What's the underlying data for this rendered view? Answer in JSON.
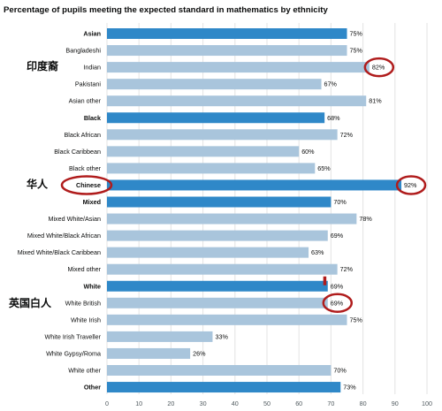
{
  "chart_data": {
    "type": "bar",
    "orientation": "horizontal",
    "title": "Percentage of pupils meeting the expected standard in mathematics by ethnicity",
    "xlim": [
      0,
      100
    ],
    "xticks": [
      0,
      10,
      20,
      30,
      40,
      50,
      60,
      70,
      80,
      90,
      100
    ],
    "grid": true,
    "categories": [
      "Asian",
      "Bangladeshi",
      "Indian",
      "Pakistani",
      "Asian other",
      "Black",
      "Black African",
      "Black Caribbean",
      "Black other",
      "Chinese",
      "Mixed",
      "Mixed White/Asian",
      "Mixed White/Black African",
      "Mixed White/Black Caribbean",
      "Mixed other",
      "White",
      "White British",
      "White Irish",
      "White Irish Traveller",
      "White Gypsy/Roma",
      "White other",
      "Other"
    ],
    "values": [
      75,
      75,
      82,
      67,
      81,
      68,
      72,
      60,
      65,
      92,
      70,
      78,
      69,
      63,
      72,
      69,
      69,
      75,
      33,
      26,
      70,
      73
    ],
    "value_labels": [
      "75%",
      "75%",
      "82%",
      "67%",
      "81%",
      "68%",
      "72%",
      "60%",
      "65%",
      "92%",
      "70%",
      "78%",
      "69%",
      "63%",
      "72%",
      "69%",
      "69%",
      "75%",
      "33%",
      "26%",
      "70%",
      "73%"
    ],
    "is_group_total": [
      true,
      false,
      false,
      false,
      false,
      true,
      false,
      false,
      false,
      true,
      true,
      false,
      false,
      false,
      false,
      true,
      false,
      false,
      false,
      false,
      false,
      true
    ],
    "colors": {
      "group": "#2f88c8",
      "subgroup": "#a9c5dc",
      "grid": "#e3e3e3",
      "highlight": "#b01c1c"
    },
    "highlighted_categories": [
      "Indian",
      "Chinese",
      "White British"
    ],
    "marker_category": "White",
    "marker_value": 68,
    "annotations": [
      {
        "text": "印度裔",
        "category": "Indian"
      },
      {
        "text": "华人",
        "category": "Chinese"
      },
      {
        "text": "英国白人",
        "category": "White British"
      }
    ]
  }
}
